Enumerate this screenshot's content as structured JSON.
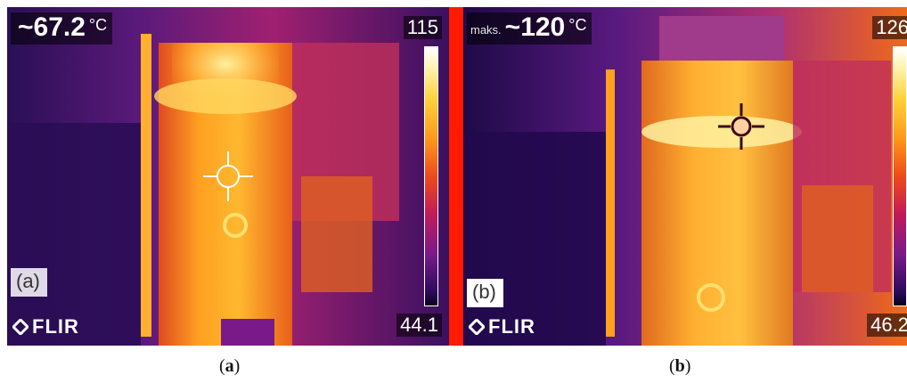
{
  "panels": [
    {
      "id": "a",
      "readout": {
        "label": "",
        "value": "~67.2",
        "unit": "°C"
      },
      "scale_max": "115",
      "scale_min": "44.1",
      "label": "(a)",
      "logo": "FLIR"
    },
    {
      "id": "b",
      "readout": {
        "label": "maks.",
        "value": "~120",
        "unit": "°C"
      },
      "scale_max": "126",
      "scale_min": "46.2",
      "label": "(b)",
      "logo": "FLIR"
    }
  ],
  "captions": [
    {
      "open": "(",
      "letter": "a",
      "close": ")"
    },
    {
      "open": "(",
      "letter": "b",
      "close": ")"
    }
  ],
  "colors": {
    "divider": "#ff1a00",
    "palette": "ironbow"
  },
  "icons": [
    "crosshair-icon",
    "flir-logo-icon"
  ]
}
